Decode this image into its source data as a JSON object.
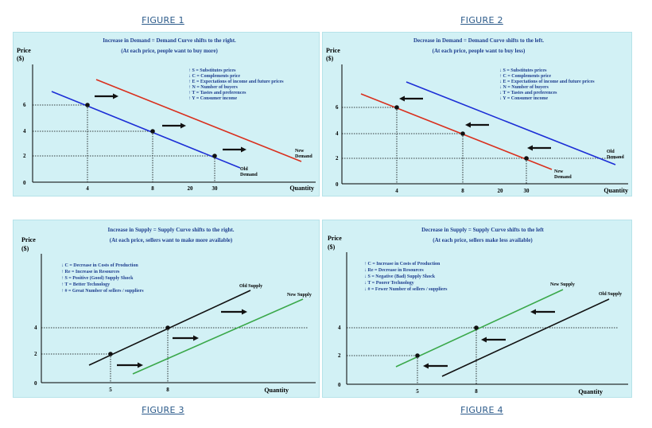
{
  "figures": [
    {
      "id": "fig1",
      "caption": "FIGURE 1",
      "headline": "Increase in Demand = Demand Curve shifts to the right.",
      "subline": "(At each price, people want to buy more)",
      "y_label": "Price",
      "y_unit": "($)",
      "x_label": "Quantity",
      "y_ticks": [
        "6",
        "4",
        "2",
        "0"
      ],
      "x_ticks": [
        "4",
        "8",
        "20",
        "30"
      ],
      "factors": [
        "↑ S = Substitutes prices",
        "↓ C = Complements price",
        "↑ E = Expectations of income and future prices",
        "↑ N = Number of buyers",
        "↑ T  = Tastes and preferences",
        "↑ Y  = Consumer income"
      ],
      "curves": [
        {
          "name": "Old Demand",
          "label_lines": [
            "Old",
            "Demand"
          ],
          "color": "#1c2ed6"
        },
        {
          "name": "New Demand",
          "label_lines": [
            "New",
            "Demand"
          ],
          "color": "#d9301e"
        }
      ],
      "arrow_direction": "right",
      "colors": {
        "arrow": "#111111",
        "points": "#111111"
      }
    },
    {
      "id": "fig2",
      "caption": "FIGURE 2",
      "headline": "Decrease in Demand = Demand Curve shifts to the left.",
      "subline": "(At each price, people want to buy less)",
      "y_label": "Price",
      "y_unit": "($)",
      "x_label": "Quantity",
      "y_ticks": [
        "6",
        "4",
        "2",
        "0"
      ],
      "x_ticks": [
        "4",
        "8",
        "20",
        "30"
      ],
      "factors": [
        "↓ S = Substitutes prices",
        "↑ C = Complements price",
        "↓ E = Expectations of income and future prices",
        "↓ N = Number of buyers",
        "↓ T  = Tastes and preferences",
        "↓ Y  = Consumer income"
      ],
      "curves": [
        {
          "name": "Old Demand",
          "label_lines": [
            "Old",
            "Demand"
          ],
          "color": "#1c2ed6"
        },
        {
          "name": "New Demand",
          "label_lines": [
            "New",
            "Demand"
          ],
          "color": "#d9301e"
        }
      ],
      "arrow_direction": "left",
      "colors": {
        "arrow": "#111111",
        "points": "#111111"
      }
    },
    {
      "id": "fig3",
      "caption": "FIGURE 3",
      "headline": "Increase in Supply = Supply Curve shifts to the right.",
      "subline": "(At each price, sellers want to make more available)",
      "y_label": "Price",
      "y_unit": "($)",
      "x_label": "Quantity",
      "y_ticks": [
        "4",
        "2",
        "0"
      ],
      "x_ticks": [
        "5",
        "8"
      ],
      "factors": [
        "↓ C = Decrease in Costs of Production",
        "↑ Re = Increase in Resources",
        "↑ S = Positive (Good) Supply Shock",
        "↑ T  = Better Technology",
        "↑ #  = Great Number of sellers / suppliers"
      ],
      "curves": [
        {
          "name": "Old Supply",
          "label_lines": [
            "Old Supply"
          ],
          "color": "#111111"
        },
        {
          "name": "New Supply",
          "label_lines": [
            "New Supply"
          ],
          "color": "#3aa84a"
        }
      ],
      "arrow_direction": "right",
      "colors": {
        "arrow": "#111111",
        "points": "#111111"
      }
    },
    {
      "id": "fig4",
      "caption": "FIGURE 4",
      "headline": "Decrease in Supply = Supply Curve shifts to the left",
      "subline": "(At each price, sellers make less available)",
      "y_label": "Price",
      "y_unit": "($)",
      "x_label": "Quantity",
      "y_ticks": [
        "4",
        "2",
        "0"
      ],
      "x_ticks": [
        "5",
        "8"
      ],
      "factors": [
        "↑ C = Increase in Costs of Production",
        "↓ Re = Decrease in Resources",
        "↓ S = Negative (Bad) Supply Shock",
        "↓ T  = Poorer Technology",
        "↓ #  = Fewer Number of sellers / suppliers"
      ],
      "curves": [
        {
          "name": "New Supply",
          "label_lines": [
            "New Supply"
          ],
          "color": "#3aa84a"
        },
        {
          "name": "Old Supply",
          "label_lines": [
            "Old Supply"
          ],
          "color": "#111111"
        }
      ],
      "arrow_direction": "left",
      "colors": {
        "arrow": "#111111",
        "points": "#111111"
      }
    }
  ]
}
